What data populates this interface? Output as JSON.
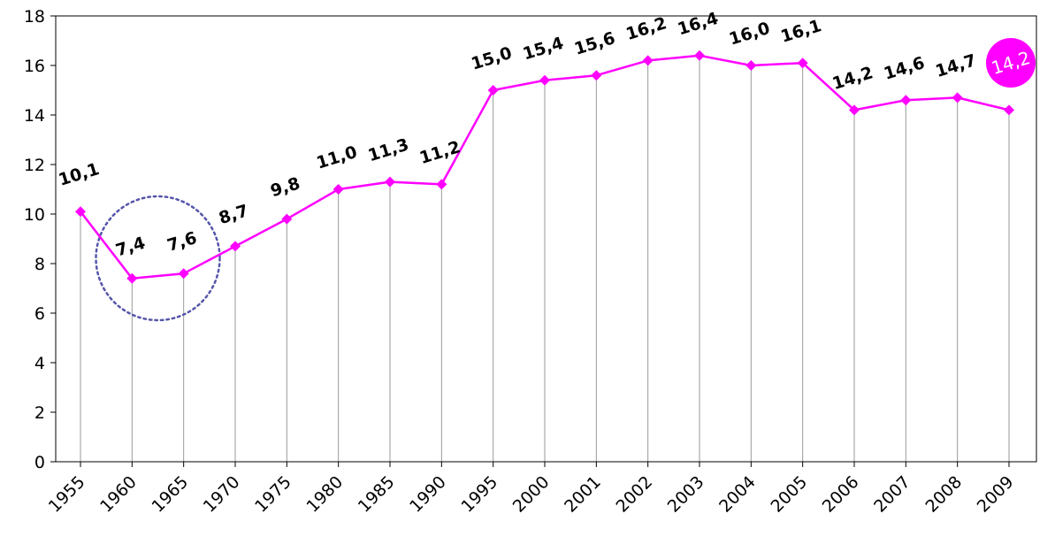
{
  "chart_data": {
    "type": "line",
    "categories": [
      "1955",
      "1960",
      "1965",
      "1970",
      "1975",
      "1980",
      "1985",
      "1990",
      "1995",
      "2000",
      "2001",
      "2002",
      "2003",
      "2004",
      "2005",
      "2006",
      "2007",
      "2008",
      "2009"
    ],
    "series": [
      {
        "values": [
          10.1,
          7.4,
          7.6,
          8.7,
          9.8,
          11.0,
          11.3,
          11.2,
          15.0,
          15.4,
          15.6,
          16.2,
          16.4,
          16.0,
          16.1,
          14.2,
          14.6,
          14.7,
          14.2
        ],
        "data_labels": [
          "10,1",
          "7,4",
          "7,6",
          "8,7",
          "9,8",
          "11,0",
          "11,3",
          "11,2",
          "15,0",
          "15,4",
          "15,6",
          "16,2",
          "16,4",
          "16,0",
          "16,1",
          "14,2",
          "14,6",
          "14,7",
          "14,2"
        ],
        "color": "#ff00ff"
      }
    ],
    "yticks": [
      "0",
      "2",
      "4",
      "6",
      "8",
      "10",
      "12",
      "14",
      "16",
      "18"
    ],
    "ylim": [
      0,
      18
    ],
    "grid": "vertical drop lines from each point",
    "highlight": {
      "index": 18,
      "label": "14,2",
      "color": "#ff00ff"
    },
    "annotation": {
      "type": "dotted-circle",
      "around_indices": [
        1,
        2
      ],
      "color": "#5555aa"
    },
    "title": "",
    "xlabel": "",
    "ylabel": ""
  }
}
